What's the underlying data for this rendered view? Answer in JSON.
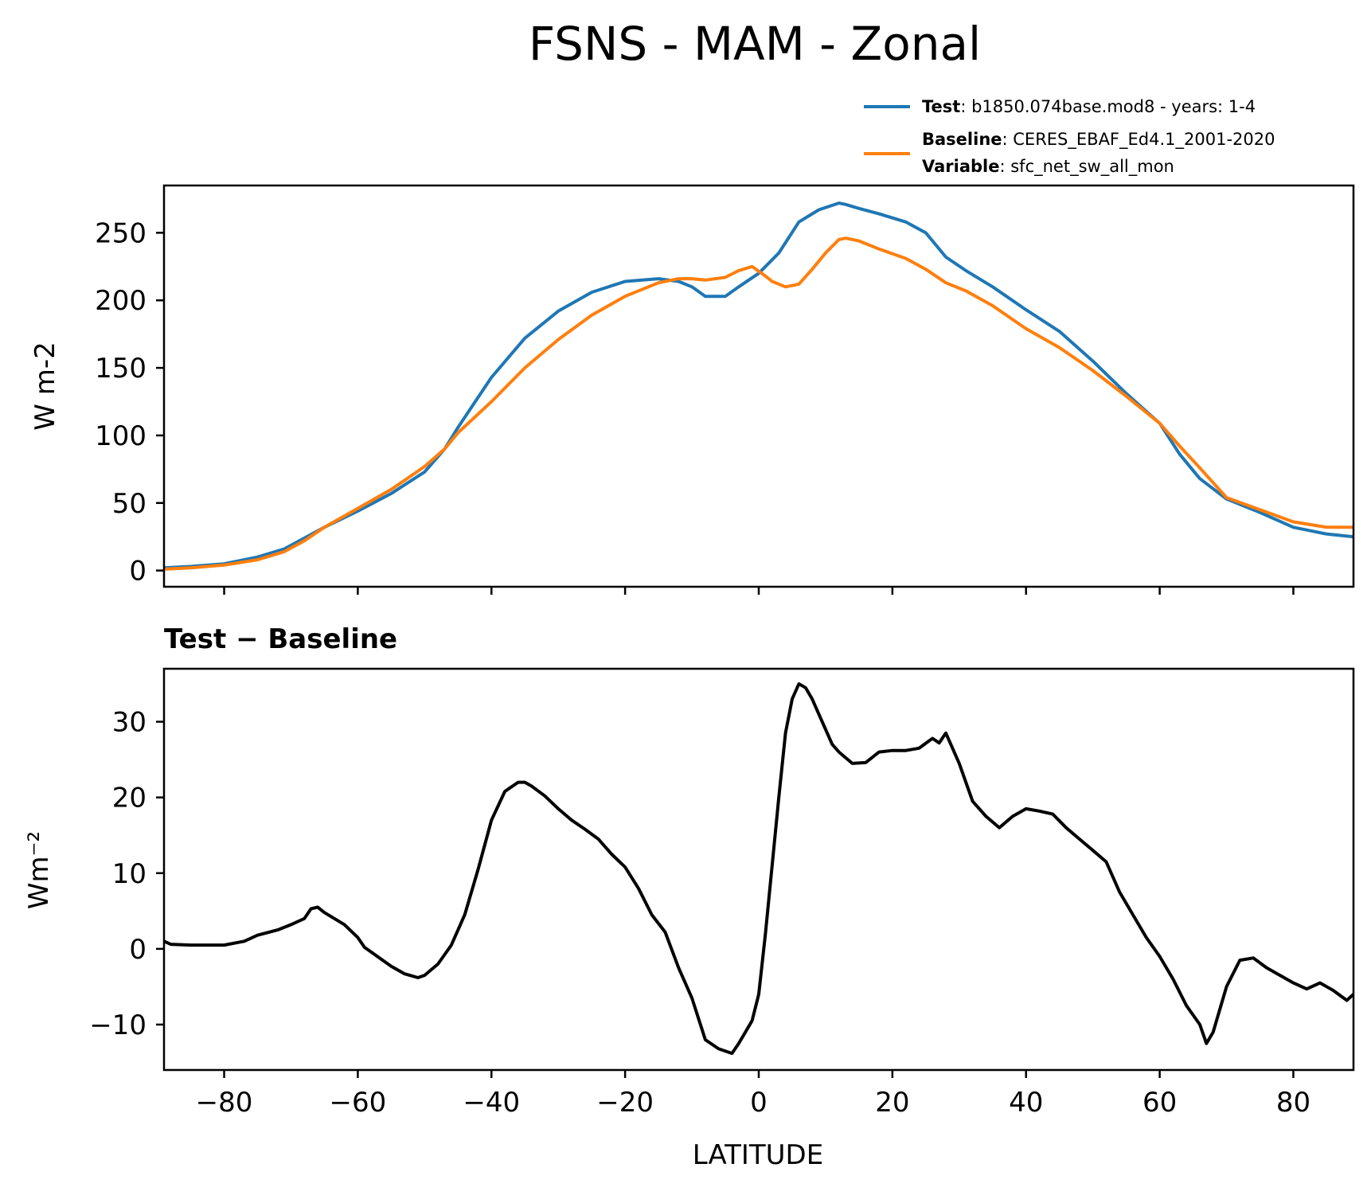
{
  "chart_data": [
    {
      "type": "line",
      "title": "FSNS - MAM - Zonal",
      "xlabel": "",
      "ylabel": "W m-2",
      "xlim": [
        -89,
        89
      ],
      "ylim": [
        -12,
        285
      ],
      "yticks": [
        0,
        50,
        100,
        150,
        200,
        250
      ],
      "xticks": [
        -80,
        -60,
        -40,
        -20,
        0,
        20,
        40,
        60,
        80
      ],
      "legend": {
        "position": "above-right",
        "entries": [
          {
            "series": "Test",
            "label_bold": "Test",
            "text": ": b1850.074base.mod8 - years: 1-4"
          },
          {
            "series": "Baseline",
            "label_bold": "Baseline",
            "text": ": CERES_EBAF_Ed4.1_2001-2020",
            "label_bold2": "Variable",
            "text2": ": sfc_net_sw_all_mon"
          }
        ]
      },
      "series": [
        {
          "name": "Test",
          "color": "#1f77b4",
          "x": [
            -89,
            -85,
            -80,
            -75,
            -71,
            -68,
            -65,
            -60,
            -55,
            -50,
            -47,
            -45,
            -40,
            -35,
            -30,
            -25,
            -20,
            -15,
            -12,
            -10,
            -8,
            -5,
            -3,
            0,
            3,
            6,
            9,
            12,
            13,
            15,
            18,
            22,
            25,
            28,
            31,
            35,
            40,
            45,
            50,
            55,
            60,
            63,
            66,
            70,
            75,
            80,
            85,
            89
          ],
          "values": [
            2,
            3,
            5,
            10,
            16,
            24,
            32,
            44,
            57,
            73,
            90,
            106,
            143,
            172,
            192,
            206,
            214,
            216,
            214,
            210,
            203,
            203,
            210,
            220,
            235,
            258,
            267,
            272,
            271,
            268,
            264,
            258,
            250,
            232,
            222,
            210,
            193,
            177,
            155,
            131,
            109,
            86,
            68,
            53,
            43,
            32,
            27,
            25
          ]
        },
        {
          "name": "Baseline",
          "color": "#ff7f0e",
          "x": [
            -89,
            -85,
            -80,
            -75,
            -71,
            -68,
            -65,
            -60,
            -55,
            -50,
            -47,
            -45,
            -40,
            -35,
            -30,
            -25,
            -20,
            -15,
            -12,
            -10,
            -8,
            -5,
            -3,
            -1,
            1,
            2,
            4,
            6,
            8,
            10,
            12,
            13,
            15,
            18,
            22,
            25,
            28,
            31,
            35,
            40,
            45,
            50,
            55,
            60,
            63,
            66,
            70,
            75,
            80,
            85,
            89
          ],
          "values": [
            1,
            2,
            4,
            8,
            14,
            22,
            32,
            46,
            60,
            77,
            90,
            102,
            125,
            150,
            171,
            189,
            203,
            213,
            216,
            216,
            215,
            217,
            222,
            225,
            218,
            214,
            210,
            212,
            223,
            235,
            245,
            246,
            244,
            238,
            231,
            223,
            213,
            207,
            196,
            179,
            165,
            148,
            129,
            109,
            92,
            76,
            54,
            45,
            36,
            32,
            32
          ]
        }
      ]
    },
    {
      "type": "line",
      "title": "Test − Baseline",
      "xlabel": "LATITUDE",
      "ylabel": "Wm⁻²",
      "xlim": [
        -89,
        89
      ],
      "ylim": [
        -16,
        37
      ],
      "yticks": [
        -10,
        0,
        10,
        20,
        30
      ],
      "xticks": [
        -80,
        -60,
        -40,
        -20,
        0,
        20,
        40,
        60,
        80
      ],
      "xticklabels": [
        "−80",
        "−60",
        "−40",
        "−20",
        "0",
        "20",
        "40",
        "60",
        "80"
      ],
      "yticklabels": [
        "−10",
        "0",
        "10",
        "20",
        "30"
      ],
      "series": [
        {
          "name": "Test − Baseline",
          "color": "#000000",
          "x": [
            -89,
            -88,
            -85,
            -80,
            -77,
            -75,
            -72,
            -70,
            -68,
            -67,
            -66,
            -65,
            -62,
            -60,
            -59,
            -55,
            -53,
            -51,
            -50,
            -48,
            -46,
            -44,
            -42,
            -40,
            -38,
            -36,
            -35,
            -34,
            -32,
            -30,
            -28,
            -26,
            -24,
            -22,
            -20,
            -18,
            -16,
            -14,
            -12,
            -10,
            -8,
            -6,
            -4,
            -3,
            -2,
            -1,
            0,
            1,
            2,
            3,
            4,
            5,
            6,
            7,
            8,
            9,
            10,
            11,
            12,
            14,
            16,
            18,
            20,
            22,
            24,
            26,
            27,
            28,
            30,
            32,
            34,
            36,
            38,
            40,
            42,
            44,
            46,
            48,
            50,
            52,
            54,
            56,
            58,
            60,
            62,
            64,
            66,
            67,
            68,
            70,
            72,
            74,
            76,
            78,
            80,
            82,
            84,
            86,
            88,
            89
          ],
          "values": [
            1,
            0.6,
            0.5,
            0.5,
            1,
            1.8,
            2.5,
            3.2,
            4,
            5.3,
            5.5,
            4.8,
            3.2,
            1.5,
            0.2,
            -2.3,
            -3.3,
            -3.8,
            -3.5,
            -2,
            0.5,
            4.5,
            10.5,
            17,
            20.8,
            22,
            22,
            21.5,
            20.2,
            18.5,
            17,
            15.8,
            14.5,
            12.5,
            10.8,
            8,
            4.5,
            2.2,
            -2.5,
            -6.5,
            -12,
            -13.2,
            -13.8,
            -12.5,
            -11,
            -9.5,
            -6,
            2,
            11,
            20,
            28.5,
            33,
            35,
            34.5,
            33,
            31,
            29,
            27,
            26,
            24.5,
            24.6,
            26,
            26.2,
            26.2,
            26.5,
            27.8,
            27.2,
            28.5,
            24.5,
            19.5,
            17.5,
            16,
            17.5,
            18.5,
            18.2,
            17.8,
            16,
            14.5,
            13,
            11.5,
            7.5,
            4.5,
            1.5,
            -1,
            -4,
            -7.5,
            -10,
            -12.5,
            -11,
            -5,
            -1.5,
            -1.2,
            -2.5,
            -3.5,
            -4.5,
            -5.3,
            -4.5,
            -5.5,
            -6.8,
            -6
          ]
        }
      ]
    }
  ]
}
